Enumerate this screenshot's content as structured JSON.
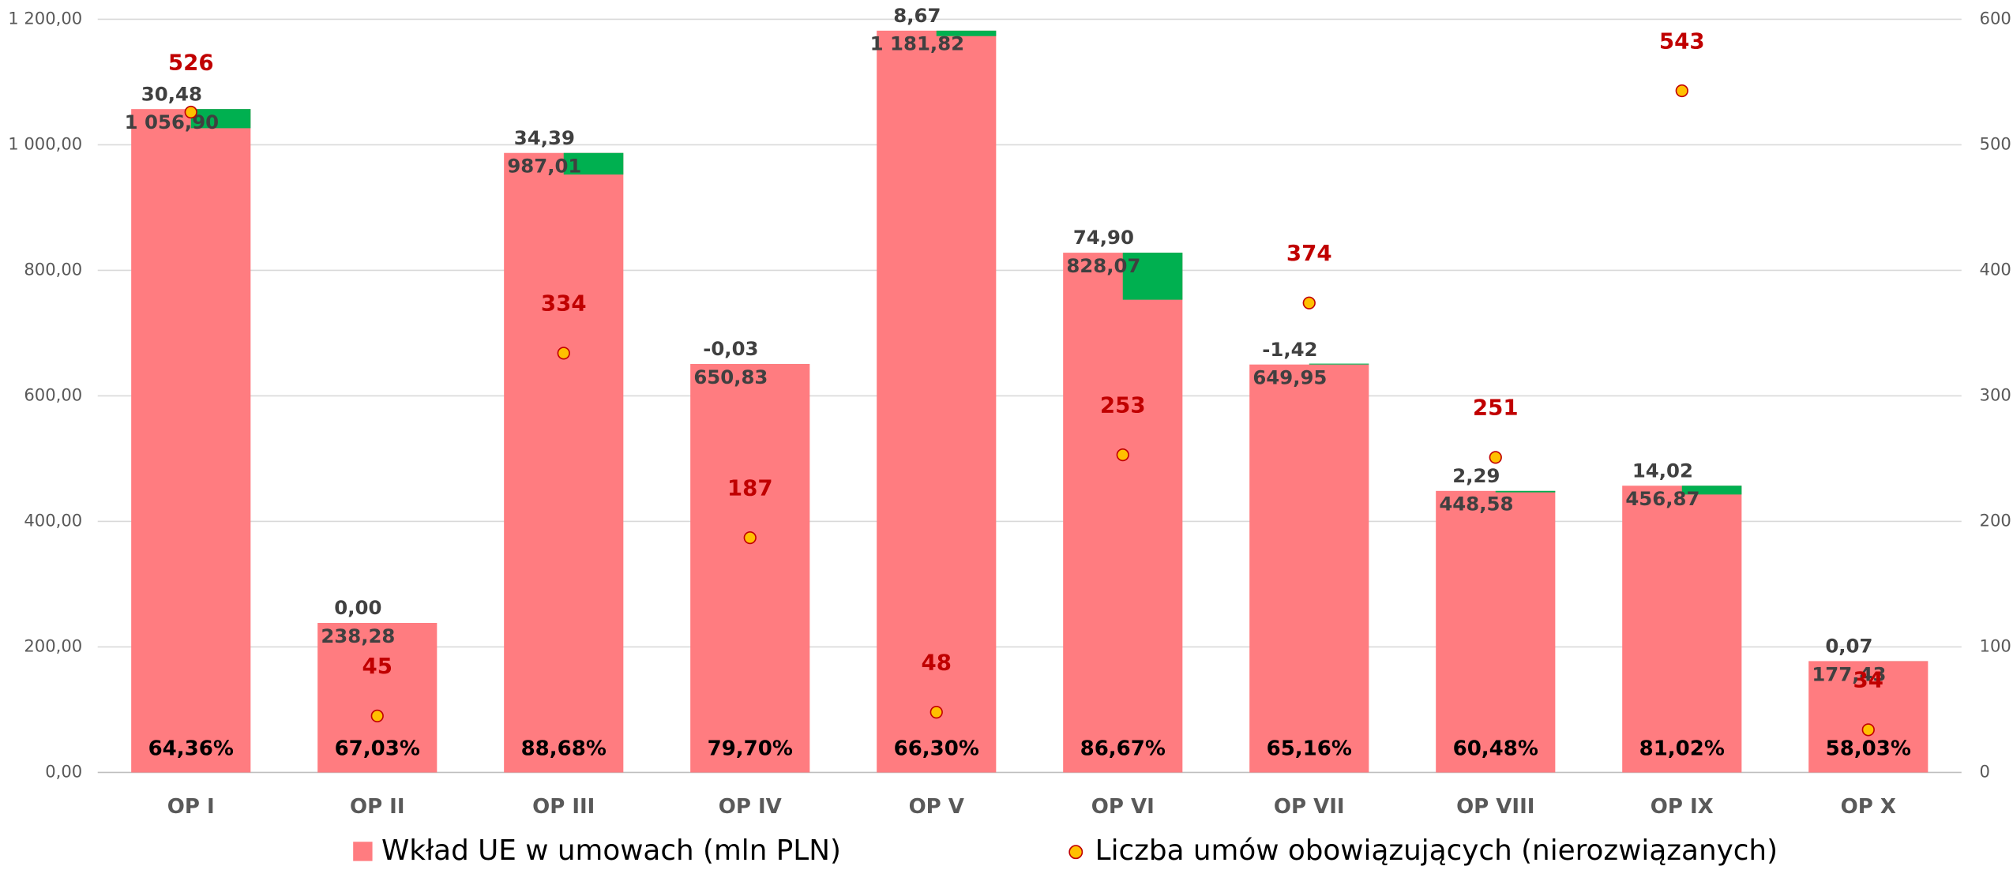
{
  "chart_data": {
    "type": "bar",
    "categories": [
      "OP I",
      "OP II",
      "OP III",
      "OP IV",
      "OP V",
      "OP VI",
      "OP VII",
      "OP VIII",
      "OP IX",
      "OP X"
    ],
    "series": [
      {
        "name": "Wkład UE w umowach (mln PLN)",
        "color": "#ff7c80",
        "values": [
          1056.9,
          238.28,
          987.01,
          650.83,
          1181.82,
          828.07,
          649.95,
          448.58,
          456.87,
          177.43
        ],
        "value_labels": [
          "1 056,90",
          "238,28",
          "987,01",
          "650,83",
          "1 181,82",
          "828,07",
          "649,95",
          "448,58",
          "456,87",
          "177,43"
        ]
      },
      {
        "name": "Liczba umów obowiązujących (nierozwiązanych)",
        "color": "#ffc000",
        "axis": "y2",
        "values": [
          526,
          45,
          334,
          187,
          48,
          253,
          374,
          251,
          543,
          34
        ]
      }
    ],
    "increments": {
      "color": "#00b050",
      "values": [
        30.48,
        0.0,
        34.39,
        -0.03,
        8.67,
        74.9,
        -1.42,
        2.29,
        14.02,
        0.07
      ],
      "value_labels": [
        "30,48",
        "0,00",
        "34,39",
        "-0,03",
        "8,67",
        "74,90",
        "-1,42",
        "2,29",
        "14,02",
        "0,07"
      ]
    },
    "shares": {
      "values": [
        64.36,
        67.03,
        88.68,
        79.7,
        66.3,
        86.67,
        65.16,
        60.48,
        81.02,
        58.03
      ],
      "value_labels": [
        "64,36%",
        "67,03%",
        "88,68%",
        "79,70%",
        "66,30%",
        "86,67%",
        "65,16%",
        "60,48%",
        "81,02%",
        "58,03%"
      ]
    },
    "ylim": [
      0,
      1200
    ],
    "yticks": [
      {
        "value": 0,
        "label": "0,00"
      },
      {
        "value": 200,
        "label": "200,00"
      },
      {
        "value": 400,
        "label": "400,00"
      },
      {
        "value": 600,
        "label": "600,00"
      },
      {
        "value": 800,
        "label": "800,00"
      },
      {
        "value": 1000,
        "label": "1 000,00"
      },
      {
        "value": 1200,
        "label": "1 200,00"
      }
    ],
    "y2lim": [
      0,
      600
    ],
    "y2ticks": [
      0,
      100,
      200,
      300,
      400,
      500,
      600
    ],
    "grid": true,
    "legend": "bottom"
  }
}
